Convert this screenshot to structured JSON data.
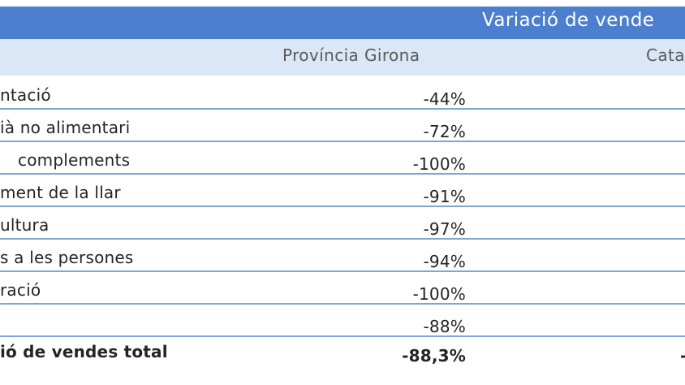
{
  "table": {
    "header_title": "Variació de vende",
    "subheader": {
      "province": "Província Girona",
      "other": "Cata"
    },
    "rows": [
      {
        "label": "ntació",
        "value": "-44%"
      },
      {
        "label": "ià no alimentari",
        "value": "-72%"
      },
      {
        "label": "complements",
        "value": "-100%"
      },
      {
        "label": "ment de la llar",
        "value": "-91%"
      },
      {
        "label": "ultura",
        "value": "-97%"
      },
      {
        "label": "s a les persones",
        "value": "-94%"
      },
      {
        "label": "ració",
        "value": "-100%"
      },
      {
        "label": "",
        "value": "-88%"
      }
    ],
    "total": {
      "label": "ió de vendes total",
      "value": "-88,3%",
      "other_value": "-"
    }
  }
}
